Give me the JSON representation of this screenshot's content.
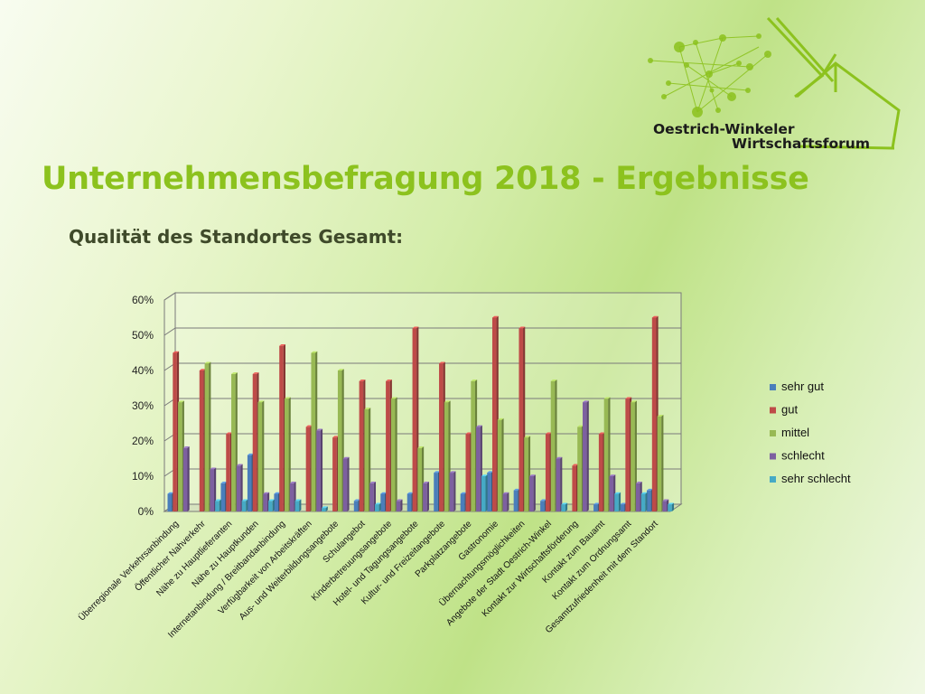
{
  "slide": {
    "title": "Unternehmensbefragung 2018 - Ergebnisse",
    "subtitle": "Qualität des Standortes Gesamt:"
  },
  "logo": {
    "line1": "Oestrich-Winkeler",
    "line2": "Wirtschaftsforum",
    "color": "#8cc21e"
  },
  "chart_data": {
    "type": "bar",
    "title": "",
    "xlabel": "",
    "ylabel": "",
    "ylim": [
      0,
      60
    ],
    "yticks": [
      "0%",
      "10%",
      "20%",
      "30%",
      "40%",
      "50%",
      "60%"
    ],
    "grid": true,
    "legend_position": "right",
    "categories": [
      "Überregionale Verkehrsanbindung",
      "Öffentlicher Nahverkehr",
      "Nähe zu Hauptlieferanten",
      "Nähe zu Hauptkunden",
      "Internetanbindung / Breitbandanbindung",
      "Verfügbarkeit von Arbeitskräften",
      "Aus- und Weiterbildungsangebote",
      "Schulangebot",
      "Kinderbetreuungsangebote",
      "Hotel- und Tagungsangebote",
      "Kultur- und Freizeitangebote",
      "Parkplatzangebote",
      "Gastronomie",
      "Übernachtungsmöglichkeiten",
      "Angebote der Stadt Oestrich-Winkel",
      "Kontakt zur Wirtschaftsförderung",
      "Kontakt zum Bauamt",
      "Kontakt zum Ordnungsamt",
      "Gesamtzufriedenheit mit dem Standort"
    ],
    "series": [
      {
        "name": "sehr gut",
        "color": "#4a7ebb",
        "values": [
          5,
          0,
          8,
          16,
          5,
          0,
          0,
          3,
          5,
          5,
          11,
          5,
          11,
          6,
          3,
          0,
          2,
          2,
          6
        ]
      },
      {
        "name": "gut",
        "color": "#be4b48",
        "values": [
          45,
          40,
          22,
          39,
          47,
          24,
          21,
          37,
          37,
          52,
          42,
          22,
          55,
          52,
          22,
          13,
          22,
          32,
          55
        ]
      },
      {
        "name": "mittel",
        "color": "#98b954",
        "values": [
          31,
          42,
          39,
          31,
          32,
          45,
          40,
          29,
          32,
          18,
          31,
          37,
          26,
          21,
          37,
          24,
          32,
          31,
          27
        ]
      },
      {
        "name": "schlecht",
        "color": "#7d60a0",
        "values": [
          18,
          12,
          13,
          5,
          8,
          23,
          15,
          8,
          3,
          8,
          11,
          24,
          5,
          10,
          15,
          31,
          10,
          8,
          3
        ]
      },
      {
        "name": "sehr schlecht",
        "color": "#46aac5",
        "values": [
          0,
          3,
          3,
          3,
          3,
          1,
          0,
          2,
          0,
          0,
          0,
          10,
          0,
          0,
          2,
          0,
          5,
          5,
          2
        ]
      }
    ]
  }
}
